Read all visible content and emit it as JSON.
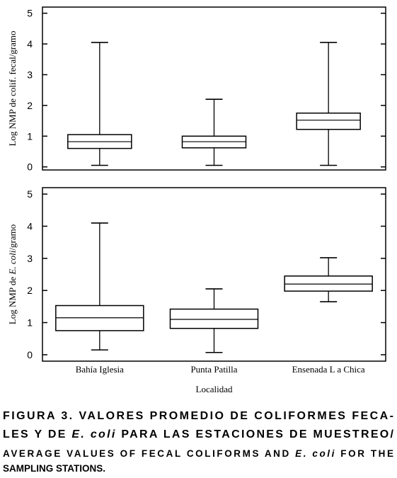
{
  "chart_data": [
    {
      "type": "box",
      "y_label": [
        "Log NMP de colif. fecal/gramo"
      ],
      "categories": [
        null,
        null,
        null
      ],
      "min": [
        0.05,
        0.05,
        0.05
      ],
      "q1": [
        0.6,
        0.62,
        1.22
      ],
      "median": [
        0.82,
        0.82,
        1.52
      ],
      "q3": [
        1.05,
        1.0,
        1.75
      ],
      "max": [
        4.05,
        2.2,
        4.05
      ],
      "ylim": [
        -0.1,
        5.2
      ],
      "yticks": [
        0,
        1,
        2,
        3,
        4,
        5
      ],
      "color": "#000000"
    },
    {
      "type": "box",
      "y_label": [
        "Log NMP de ",
        "E. coli",
        "/gramo"
      ],
      "x_label": "Localidad",
      "categories": [
        "Bahía Iglesia",
        "Punta Patilla",
        "Ensenada L a Chica"
      ],
      "min": [
        0.15,
        0.07,
        1.65
      ],
      "q1": [
        0.75,
        0.82,
        1.98
      ],
      "median": [
        1.15,
        1.1,
        2.2
      ],
      "q3": [
        1.53,
        1.42,
        2.45
      ],
      "max": [
        4.1,
        2.05,
        3.02
      ],
      "ylim": [
        -0.2,
        5.2
      ],
      "yticks": [
        0,
        1,
        2,
        3,
        4,
        5
      ],
      "color": "#000000"
    }
  ],
  "caption": [
    [
      "FIGURA 3. VALORES PROMEDIO DE COLIFORMES FECA-"
    ],
    [
      "LES Y DE ",
      "E. coli",
      " PARA LAS ESTACIONES DE MUESTREO/"
    ],
    [
      "AVERAGE VALUES OF FECAL COLIFORMS AND ",
      "E. coli",
      " FOR THE"
    ],
    [
      "SAMPLING STATIONS."
    ]
  ]
}
